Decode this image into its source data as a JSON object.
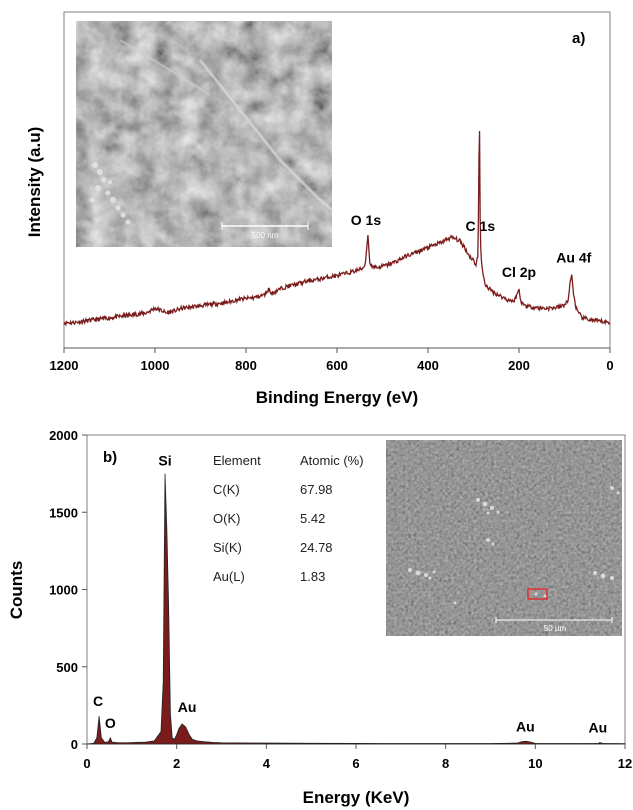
{
  "chart_data": [
    {
      "type": "line",
      "panel_label": "a)",
      "xlabel": "Binding Energy (eV)",
      "ylabel": "Intensity (a.u)",
      "xlim": [
        1200,
        0
      ],
      "x_reversed": true,
      "x_ticks": [
        1200,
        1000,
        800,
        600,
        400,
        200,
        0
      ],
      "y_ticks_shown": false,
      "line_color": "#7b1c1c",
      "x": [
        1200,
        1180,
        1160,
        1140,
        1120,
        1100,
        1080,
        1060,
        1040,
        1020,
        1000,
        985,
        975,
        965,
        955,
        940,
        920,
        900,
        880,
        860,
        840,
        820,
        800,
        780,
        760,
        750,
        745,
        740,
        730,
        720,
        700,
        680,
        660,
        640,
        620,
        600,
        580,
        570,
        560,
        545,
        538,
        532,
        528,
        522,
        510,
        490,
        470,
        450,
        430,
        410,
        390,
        370,
        350,
        340,
        330,
        320,
        310,
        300,
        295,
        290,
        287,
        285,
        282,
        278,
        275,
        265,
        255,
        240,
        225,
        210,
        205,
        200,
        197,
        193,
        185,
        170,
        150,
        130,
        110,
        100,
        92,
        88,
        84,
        80,
        75,
        70,
        60,
        40,
        20,
        0
      ],
      "y": [
        0.02,
        0.02,
        0.03,
        0.04,
        0.05,
        0.06,
        0.07,
        0.08,
        0.09,
        0.1,
        0.14,
        0.12,
        0.1,
        0.11,
        0.12,
        0.14,
        0.15,
        0.16,
        0.17,
        0.18,
        0.19,
        0.21,
        0.22,
        0.23,
        0.25,
        0.3,
        0.26,
        0.27,
        0.29,
        0.31,
        0.33,
        0.35,
        0.37,
        0.38,
        0.4,
        0.41,
        0.43,
        0.44,
        0.45,
        0.47,
        0.5,
        0.75,
        0.52,
        0.49,
        0.48,
        0.5,
        0.53,
        0.57,
        0.6,
        0.63,
        0.66,
        0.69,
        0.73,
        0.72,
        0.7,
        0.65,
        0.58,
        0.54,
        0.5,
        0.58,
        1.8,
        0.7,
        0.5,
        0.4,
        0.34,
        0.3,
        0.27,
        0.24,
        0.21,
        0.2,
        0.25,
        0.3,
        0.21,
        0.18,
        0.16,
        0.15,
        0.14,
        0.14,
        0.15,
        0.17,
        0.2,
        0.35,
        0.42,
        0.25,
        0.15,
        0.1,
        0.06,
        0.04,
        0.03,
        0.02
      ],
      "peaks": [
        {
          "label": "C 1s",
          "x": 285
        },
        {
          "label": "O 1s",
          "x": 532
        },
        {
          "label": "Cl 2p",
          "x": 200
        },
        {
          "label": "Au 4f",
          "x": 84
        }
      ],
      "inset_image": {
        "scale_bar": "500 nm"
      }
    },
    {
      "type": "area",
      "panel_label": "b)",
      "xlabel": "Energy (KeV)",
      "ylabel": "Counts",
      "xlim": [
        0,
        12
      ],
      "ylim": [
        0,
        2000
      ],
      "x_ticks": [
        0,
        2,
        4,
        6,
        8,
        10,
        12
      ],
      "y_ticks": [
        0,
        500,
        1000,
        1500,
        2000
      ],
      "fill_color": "#7b1c1c",
      "x": [
        0,
        0.15,
        0.22,
        0.27,
        0.32,
        0.4,
        0.48,
        0.52,
        0.56,
        0.7,
        0.9,
        1.1,
        1.3,
        1.5,
        1.65,
        1.7,
        1.74,
        1.78,
        1.82,
        1.86,
        1.9,
        1.95,
        2.0,
        2.05,
        2.12,
        2.2,
        2.28,
        2.35,
        2.45,
        2.6,
        2.8,
        3.0,
        4.0,
        5.0,
        6.0,
        7.0,
        8.0,
        9.0,
        9.6,
        9.7,
        9.8,
        9.9,
        10.0,
        11.0,
        11.4,
        11.44,
        11.5,
        12.0
      ],
      "y": [
        0,
        5,
        40,
        180,
        40,
        10,
        15,
        40,
        12,
        8,
        8,
        10,
        12,
        20,
        80,
        400,
        1750,
        1400,
        900,
        200,
        40,
        30,
        60,
        100,
        130,
        110,
        60,
        30,
        20,
        15,
        10,
        8,
        6,
        5,
        4,
        3,
        3,
        3,
        6,
        15,
        18,
        12,
        4,
        3,
        4,
        9,
        4,
        2
      ],
      "peaks": [
        {
          "label": "Si",
          "x": 1.74
        },
        {
          "label": "C",
          "x": 0.27
        },
        {
          "label": "O",
          "x": 0.52
        },
        {
          "label": "Au",
          "x": 2.12
        },
        {
          "label": "Au",
          "x": 9.71
        },
        {
          "label": "Au",
          "x": 11.44
        }
      ],
      "table": {
        "headers": [
          "Element",
          "Atomic (%)"
        ],
        "rows": [
          [
            "C(K)",
            "67.98"
          ],
          [
            "O(K)",
            "5.42"
          ],
          [
            "Si(K)",
            "24.78"
          ],
          [
            "Au(L)",
            "1.83"
          ]
        ]
      },
      "inset_image": {
        "scale_bar": "50 µm"
      }
    }
  ]
}
